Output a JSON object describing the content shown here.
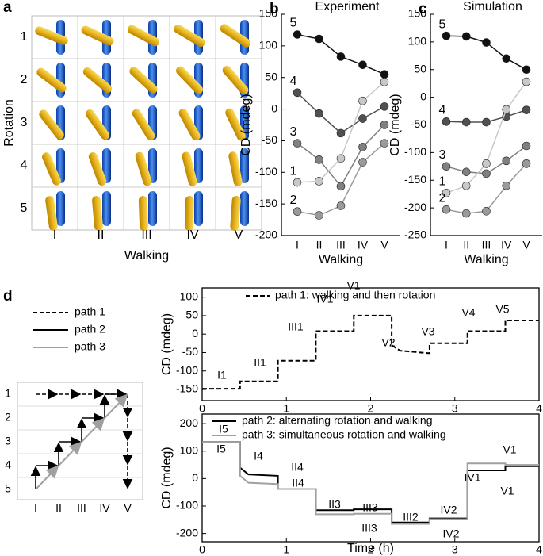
{
  "panel_a": {
    "label": "a",
    "row_labels": [
      "1",
      "2",
      "3",
      "4",
      "5"
    ],
    "column_labels": [
      "I",
      "II",
      "III",
      "IV",
      "V"
    ],
    "xlabel": "Walking",
    "ylabel": "Rotation"
  },
  "panel_d_diagram": {
    "label": "d",
    "legend": [
      "path 1",
      "path 2",
      "path 3"
    ],
    "row_labels": [
      "1",
      "2",
      "3",
      "4",
      "5"
    ],
    "column_labels": [
      "I",
      "II",
      "III",
      "IV",
      "V"
    ]
  },
  "chart_data": [
    {
      "type": "line",
      "panel_label": "b",
      "title": "Experiment",
      "categories": [
        "I",
        "II",
        "III",
        "IV",
        "V"
      ],
      "xlabel": "Walking",
      "ylabel": "CD (mdeg)",
      "ylim": [
        -200,
        150
      ],
      "yticks": [
        -200,
        -150,
        -100,
        -50,
        0,
        50,
        100,
        150
      ],
      "series": [
        {
          "name": "5",
          "color": "#111111",
          "values": [
            118,
            111,
            83,
            70,
            55
          ]
        },
        {
          "name": "4",
          "color": "#505050",
          "values": [
            26,
            -7,
            -38,
            -15,
            4
          ]
        },
        {
          "name": "3",
          "color": "#808080",
          "values": [
            -54,
            -80,
            -122,
            -60,
            -25
          ]
        },
        {
          "name": "1",
          "color": "#c8c8c8",
          "values": [
            -116,
            -114,
            -78,
            13,
            43
          ]
        },
        {
          "name": "2",
          "color": "#9a9a9a",
          "values": [
            -162,
            -168,
            -153,
            -84,
            -54
          ]
        }
      ]
    },
    {
      "type": "line",
      "panel_label": "c",
      "title": "Simulation",
      "categories": [
        "I",
        "II",
        "III",
        "IV",
        "V"
      ],
      "xlabel": "Walking",
      "ylabel": "CD (mdeg)",
      "ylim": [
        -250,
        150
      ],
      "yticks": [
        -250,
        -200,
        -150,
        -100,
        -50,
        0,
        50,
        100,
        150
      ],
      "series": [
        {
          "name": "5",
          "color": "#111111",
          "values": [
            111,
            110,
            99,
            70,
            50
          ]
        },
        {
          "name": "4",
          "color": "#505050",
          "values": [
            -44,
            -45,
            -45,
            -35,
            -23
          ]
        },
        {
          "name": "3",
          "color": "#808080",
          "values": [
            -125,
            -135,
            -138,
            -115,
            -88
          ]
        },
        {
          "name": "1",
          "color": "#c8c8c8",
          "values": [
            -173,
            -160,
            -120,
            -22,
            28
          ]
        },
        {
          "name": "2",
          "color": "#9a9a9a",
          "values": [
            -203,
            -210,
            -206,
            -160,
            -120
          ]
        }
      ]
    },
    {
      "type": "line",
      "ylabel": "CD (mdeg)",
      "x": [
        0,
        0.45,
        0.45,
        0.9,
        0.9,
        1.35,
        1.35,
        1.8,
        1.8,
        2.25,
        2.25,
        2.35,
        2.7,
        2.7,
        3.15,
        3.15,
        3.6,
        3.6,
        4
      ],
      "xlim": [
        0,
        4
      ],
      "xticks": [
        0,
        1,
        2,
        3,
        4
      ],
      "ylim": [
        -180,
        125
      ],
      "yticks": [
        -150,
        -100,
        -50,
        0,
        50,
        100
      ],
      "series": [
        {
          "name": "path 1:  walking and then rotation",
          "color": "#000000",
          "linestyle": "dashed",
          "values": [
            -148,
            -148,
            -128,
            -128,
            -72,
            -72,
            8,
            8,
            50,
            50,
            -30,
            -45,
            -52,
            -25,
            -25,
            8,
            8,
            37,
            37
          ],
          "annotations": [
            "I1",
            "II1",
            "III1",
            "IV1",
            "V1",
            "V2",
            "V3",
            "V4",
            "V5"
          ]
        }
      ]
    },
    {
      "type": "line",
      "ylabel": "CD (mdeg)",
      "xlabel": "Time (h)",
      "x": [
        0,
        0.45,
        0.45,
        0.55,
        0.9,
        0.9,
        1.35,
        1.35,
        1.8,
        1.8,
        2.25,
        2.25,
        2.7,
        2.7,
        3.15,
        3.15,
        3.6,
        3.6,
        4
      ],
      "xlim": [
        0,
        4
      ],
      "xticks": [
        0,
        1,
        2,
        3,
        4
      ],
      "ylim": [
        -230,
        235
      ],
      "yticks": [
        -200,
        -100,
        0,
        100,
        200
      ],
      "series": [
        {
          "name": "path 2: alternating rotation and walking",
          "color": "#000000",
          "linestyle": "solid",
          "values": [
            133,
            133,
            40,
            15,
            10,
            -38,
            -38,
            -115,
            -115,
            -112,
            -112,
            -160,
            -160,
            -145,
            -145,
            30,
            30,
            45,
            45
          ],
          "annotations": [
            "I5",
            "I4",
            "II4",
            "II3",
            "III3",
            "III2",
            "IV2",
            "IV1",
            "V1"
          ]
        },
        {
          "name": "path 3: simultaneous rotation and walking",
          "color": "#a0a0a0",
          "linestyle": "solid",
          "values": [
            133,
            133,
            10,
            -15,
            -20,
            -38,
            -38,
            -130,
            -130,
            -128,
            -128,
            -165,
            -165,
            -148,
            -148,
            55,
            55,
            50,
            50
          ],
          "annotations": [
            "I5",
            "II4",
            "III3",
            "IV2",
            "V1"
          ]
        }
      ]
    }
  ]
}
